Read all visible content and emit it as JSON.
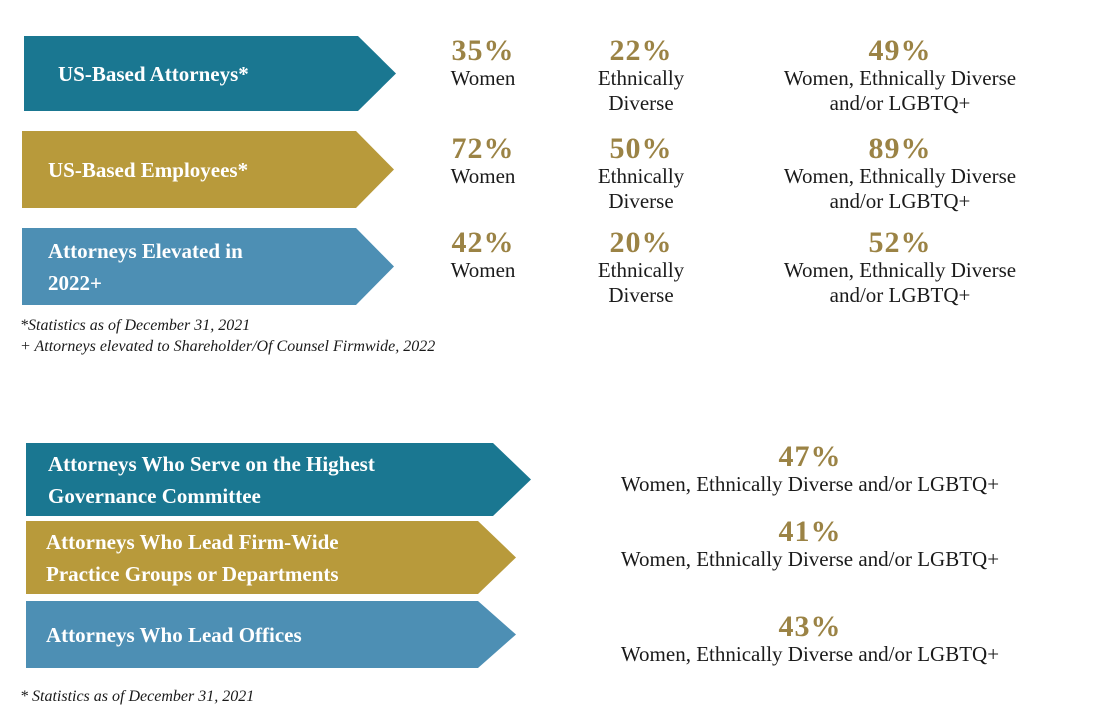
{
  "top_rows": [
    {
      "category": "US-Based Attorneys*",
      "color": "#1a7791",
      "stats": [
        {
          "value": "35%",
          "label": "Women"
        },
        {
          "value": "22%",
          "label_line1": "Ethnically",
          "label_line2": "Diverse"
        },
        {
          "value": "49%",
          "label_line1": "Women, Ethnically Diverse",
          "label_line2": "and/or LGBTQ+"
        }
      ]
    },
    {
      "category": "US-Based Employees*",
      "color": "#b89a3b",
      "stats": [
        {
          "value": "72%",
          "label": "Women"
        },
        {
          "value": "50%",
          "label_line1": "Ethnically",
          "label_line2": "Diverse"
        },
        {
          "value": "89%",
          "label_line1": "Women, Ethnically Diverse",
          "label_line2": "and/or LGBTQ+"
        }
      ]
    },
    {
      "category_line1": "Attorneys Elevated in",
      "category_line2": "2022+",
      "color": "#4d8fb4",
      "stats": [
        {
          "value": "42%",
          "label": "Women"
        },
        {
          "value": "20%",
          "label_line1": "Ethnically",
          "label_line2": "Diverse"
        },
        {
          "value": "52%",
          "label_line1": "Women, Ethnically Diverse",
          "label_line2": "and/or LGBTQ+"
        }
      ]
    }
  ],
  "top_notes": {
    "line1": "*Statistics as of December 31, 2021",
    "line2": "+ Attorneys elevated to Shareholder/Of Counsel Firmwide, 2022"
  },
  "bottom_rows": [
    {
      "category_line1": "Attorneys Who Serve on the Highest",
      "category_line2": "Governance Committee",
      "color": "#1a7791",
      "value": "47%",
      "label": "Women, Ethnically Diverse and/or LGBTQ+"
    },
    {
      "category_line1": "Attorneys Who Lead Firm-Wide",
      "category_line2": "Practice Groups or Departments",
      "color": "#b89a3b",
      "value": "41%",
      "label": "Women, Ethnically Diverse and/or LGBTQ+"
    },
    {
      "category": "Attorneys Who Lead Offices",
      "color": "#4d8fb4",
      "value": "43%",
      "label": "Women, Ethnically Diverse and/or LGBTQ+"
    }
  ],
  "bottom_note": "* Statistics as of December 31, 2021"
}
